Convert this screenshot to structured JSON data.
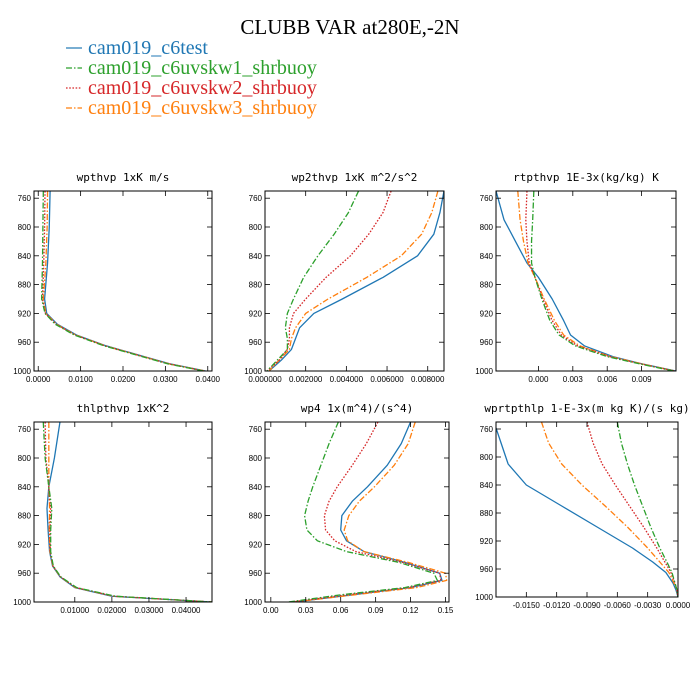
{
  "figure": {
    "title": "CLUBB VAR at280E,-2N",
    "legend": [
      {
        "name": "cam019_c6test",
        "color": "#1f77b4",
        "dash": "solid"
      },
      {
        "name": "cam019_c6uvskw1_shrbuoy",
        "color": "#2ca02c",
        "dash": "dashdot"
      },
      {
        "name": "cam019_c6uvskw2_shrbuoy",
        "color": "#d62728",
        "dash": "dotted"
      },
      {
        "name": "cam019_c6uvskw3_shrbuoy",
        "color": "#ff7f0e",
        "dash": "dashdot"
      }
    ]
  },
  "chart_data": [
    {
      "type": "line",
      "title": "wpthvp  1xK m/s",
      "xlim": [
        -0.001,
        0.041
      ],
      "ylim": [
        1000,
        750
      ],
      "xticks": [
        0,
        0.01,
        0.02,
        0.03,
        0.04
      ],
      "xtick_labels": [
        "0.0000",
        "0.0100",
        "0.0200",
        "0.0300",
        "0.0400"
      ],
      "yticks": [
        760,
        800,
        840,
        880,
        920,
        960,
        1000
      ],
      "ytick_labels": [
        "760",
        "800",
        "840",
        "880",
        "920",
        "960",
        "1000"
      ],
      "y": [
        750,
        800,
        850,
        900,
        920,
        935,
        950,
        965,
        980,
        990,
        1000
      ],
      "series": [
        {
          "name": "cam019_c6test",
          "values": [
            0.0028,
            0.0026,
            0.0022,
            0.0015,
            0.002,
            0.0045,
            0.009,
            0.016,
            0.025,
            0.031,
            0.0395
          ]
        },
        {
          "name": "cam019_c6uvskw1_shrbuoy",
          "values": [
            0.0012,
            0.0011,
            0.001,
            0.0008,
            0.0016,
            0.004,
            0.0085,
            0.0155,
            0.0245,
            0.0305,
            0.039
          ]
        },
        {
          "name": "cam019_c6uvskw2_shrbuoy",
          "values": [
            0.0016,
            0.0015,
            0.0013,
            0.001,
            0.0017,
            0.0042,
            0.0087,
            0.0157,
            0.0247,
            0.0307,
            0.0392
          ]
        },
        {
          "name": "cam019_c6uvskw3_shrbuoy",
          "values": [
            0.0022,
            0.0021,
            0.0018,
            0.0012,
            0.0018,
            0.0043,
            0.0088,
            0.0158,
            0.0248,
            0.0308,
            0.0393
          ]
        }
      ]
    },
    {
      "type": "line",
      "title": "wp2thvp  1xK m^2/s^2",
      "xlim": [
        0,
        0.0088
      ],
      "ylim": [
        1000,
        750
      ],
      "xticks": [
        0,
        0.002,
        0.004,
        0.006,
        0.008
      ],
      "xtick_labels": [
        "0.000000",
        "0.002000",
        "0.004000",
        "0.006000",
        "0.008000"
      ],
      "yticks": [
        760,
        800,
        840,
        880,
        920,
        960,
        1000
      ],
      "ytick_labels": [
        "760",
        "800",
        "840",
        "880",
        "920",
        "960",
        "1000"
      ],
      "y": [
        750,
        780,
        810,
        840,
        870,
        900,
        920,
        940,
        955,
        970,
        985,
        1000
      ],
      "series": [
        {
          "name": "cam019_c6test",
          "values": [
            0.0088,
            0.0086,
            0.0083,
            0.0075,
            0.0058,
            0.0038,
            0.0024,
            0.0017,
            0.0015,
            0.0013,
            0.0008,
            0.0002
          ]
        },
        {
          "name": "cam019_c6uvskw1_shrbuoy",
          "values": [
            0.0046,
            0.0041,
            0.0034,
            0.0026,
            0.0019,
            0.0014,
            0.0011,
            0.001,
            0.0011,
            0.0011,
            0.0006,
            0.0001
          ]
        },
        {
          "name": "cam019_c6uvskw2_shrbuoy",
          "values": [
            0.0062,
            0.0058,
            0.0051,
            0.0042,
            0.003,
            0.002,
            0.0014,
            0.0012,
            0.0012,
            0.0011,
            0.0007,
            0.0001
          ]
        },
        {
          "name": "cam019_c6uvskw3_shrbuoy",
          "values": [
            0.0085,
            0.0082,
            0.0077,
            0.0067,
            0.005,
            0.0031,
            0.002,
            0.0015,
            0.0013,
            0.0012,
            0.0007,
            0.0002
          ]
        }
      ]
    },
    {
      "type": "line",
      "title": "rtpthvp  1E-3x(kg/kg) K",
      "xlim": [
        -0.0037,
        0.012
      ],
      "ylim": [
        1000,
        750
      ],
      "xticks": [
        0,
        0.003,
        0.006,
        0.009
      ],
      "xtick_labels": [
        "0.000",
        "0.003",
        "0.006",
        "0.009"
      ],
      "yticks": [
        760,
        800,
        840,
        880,
        920,
        960,
        1000
      ],
      "ytick_labels": [
        "760",
        "800",
        "840",
        "880",
        "920",
        "960",
        "1000"
      ],
      "y": [
        750,
        790,
        820,
        850,
        870,
        900,
        930,
        950,
        965,
        980,
        990,
        1000
      ],
      "series": [
        {
          "name": "cam019_c6test",
          "values": [
            -0.0037,
            -0.003,
            -0.002,
            -0.001,
            0.0,
            0.0012,
            0.0022,
            0.0028,
            0.004,
            0.0065,
            0.009,
            0.012
          ]
        },
        {
          "name": "cam019_c6uvskw1_shrbuoy",
          "values": [
            -0.0004,
            -0.0005,
            -0.0006,
            -0.0006,
            -0.0003,
            0.0003,
            0.001,
            0.0018,
            0.0032,
            0.006,
            0.0088,
            0.0118
          ]
        },
        {
          "name": "cam019_c6uvskw2_shrbuoy",
          "values": [
            -0.001,
            -0.0011,
            -0.001,
            -0.0008,
            -0.0003,
            0.0004,
            0.0012,
            0.002,
            0.0034,
            0.0062,
            0.0089,
            0.0119
          ]
        },
        {
          "name": "cam019_c6uvskw3_shrbuoy",
          "values": [
            -0.0018,
            -0.0016,
            -0.0013,
            -0.0009,
            -0.0003,
            0.0005,
            0.0014,
            0.0022,
            0.0036,
            0.0063,
            0.009,
            0.0119
          ]
        }
      ]
    },
    {
      "type": "line",
      "title": "thlpthvp  1xK^2",
      "xlim": [
        -0.001,
        0.047
      ],
      "ylim": [
        1000,
        750
      ],
      "xticks": [
        0.01,
        0.02,
        0.03,
        0.04
      ],
      "xtick_labels": [
        "0.01000",
        "0.02000",
        "0.03000",
        "0.04000"
      ],
      "yticks": [
        760,
        800,
        840,
        880,
        920,
        960,
        1000
      ],
      "ytick_labels": [
        "760",
        "800",
        "840",
        "880",
        "920",
        "960",
        "1000"
      ],
      "y": [
        750,
        800,
        840,
        870,
        900,
        930,
        950,
        965,
        980,
        992,
        1000
      ],
      "series": [
        {
          "name": "cam019_c6test",
          "values": [
            0.006,
            0.0045,
            0.003,
            0.0025,
            0.0028,
            0.0032,
            0.004,
            0.006,
            0.01,
            0.02,
            0.047
          ]
        },
        {
          "name": "cam019_c6uvskw1_shrbuoy",
          "values": [
            0.0015,
            0.002,
            0.003,
            0.0038,
            0.0035,
            0.0035,
            0.0042,
            0.0062,
            0.0105,
            0.021,
            0.047
          ]
        },
        {
          "name": "cam019_c6uvskw2_shrbuoy",
          "values": [
            0.002,
            0.0022,
            0.003,
            0.0035,
            0.0033,
            0.0034,
            0.0041,
            0.0061,
            0.0103,
            0.0205,
            0.047
          ]
        },
        {
          "name": "cam019_c6uvskw3_shrbuoy",
          "values": [
            0.003,
            0.003,
            0.003,
            0.0032,
            0.0031,
            0.0033,
            0.0041,
            0.0061,
            0.0102,
            0.0205,
            0.047
          ]
        }
      ]
    },
    {
      "type": "line",
      "title": "wp4  1x(m^4)/(s^4)",
      "xlim": [
        -0.005,
        0.153
      ],
      "ylim": [
        1000,
        750
      ],
      "xticks": [
        0,
        0.03,
        0.06,
        0.09,
        0.12,
        0.15
      ],
      "xtick_labels": [
        "0.00",
        "0.03",
        "0.06",
        "0.09",
        "0.12",
        "0.15"
      ],
      "yticks": [
        760,
        800,
        840,
        880,
        920,
        960,
        1000
      ],
      "ytick_labels": [
        "760",
        "800",
        "840",
        "880",
        "920",
        "960",
        "1000"
      ],
      "y": [
        750,
        780,
        810,
        840,
        860,
        880,
        900,
        915,
        930,
        945,
        960,
        970,
        980,
        990,
        1000
      ],
      "series": [
        {
          "name": "cam019_c6test",
          "values": [
            0.12,
            0.112,
            0.1,
            0.083,
            0.07,
            0.061,
            0.06,
            0.065,
            0.08,
            0.115,
            0.145,
            0.147,
            0.12,
            0.07,
            0.02
          ]
        },
        {
          "name": "cam019_c6uvskw1_shrbuoy",
          "values": [
            0.058,
            0.05,
            0.043,
            0.036,
            0.032,
            0.029,
            0.031,
            0.04,
            0.065,
            0.11,
            0.14,
            0.143,
            0.115,
            0.06,
            0.015
          ]
        },
        {
          "name": "cam019_c6uvskw2_shrbuoy",
          "values": [
            0.092,
            0.082,
            0.07,
            0.057,
            0.05,
            0.046,
            0.047,
            0.055,
            0.073,
            0.113,
            0.145,
            0.146,
            0.118,
            0.065,
            0.018
          ]
        },
        {
          "name": "cam019_c6uvskw3_shrbuoy",
          "values": [
            0.124,
            0.118,
            0.106,
            0.089,
            0.076,
            0.067,
            0.063,
            0.066,
            0.08,
            0.118,
            0.15,
            0.151,
            0.125,
            0.072,
            0.02
          ]
        }
      ]
    },
    {
      "type": "line",
      "title": "wprtpthlp  1-E-3x(m kg K)/(s kg)",
      "xlim": [
        -0.018,
        0.0
      ],
      "ylim": [
        1000,
        750
      ],
      "xticks": [
        -0.015,
        -0.012,
        -0.009,
        -0.006,
        -0.003,
        0.0
      ],
      "xtick_labels": [
        "-0.0150",
        "-0.0120",
        "-0.0090",
        "-0.0060",
        "-0.0030",
        "0.0000"
      ],
      "yticks": [
        760,
        800,
        840,
        880,
        920,
        960,
        1000
      ],
      "ytick_labels": [
        "760",
        "800",
        "840",
        "880",
        "920",
        "960",
        "1000"
      ],
      "y": [
        750,
        780,
        810,
        840,
        870,
        900,
        930,
        950,
        965,
        980,
        990,
        1000
      ],
      "series": [
        {
          "name": "cam019_c6test",
          "values": [
            -0.0182,
            -0.0175,
            -0.0168,
            -0.015,
            -0.0115,
            -0.008,
            -0.0045,
            -0.0025,
            -0.0012,
            -0.0005,
            -0.0002,
            0.0
          ]
        },
        {
          "name": "cam019_c6uvskw1_shrbuoy",
          "values": [
            -0.006,
            -0.0056,
            -0.005,
            -0.0043,
            -0.0035,
            -0.0027,
            -0.0018,
            -0.0011,
            -0.0006,
            -0.0003,
            -0.0001,
            0.0
          ]
        },
        {
          "name": "cam019_c6uvskw2_shrbuoy",
          "values": [
            -0.009,
            -0.0084,
            -0.0075,
            -0.0062,
            -0.0048,
            -0.0034,
            -0.0021,
            -0.0013,
            -0.0007,
            -0.0003,
            -0.0001,
            0.0
          ]
        },
        {
          "name": "cam019_c6uvskw3_shrbuoy",
          "values": [
            -0.0135,
            -0.0128,
            -0.0115,
            -0.0095,
            -0.0072,
            -0.005,
            -0.003,
            -0.0018,
            -0.0009,
            -0.0004,
            -0.0001,
            0.0
          ]
        }
      ]
    }
  ]
}
